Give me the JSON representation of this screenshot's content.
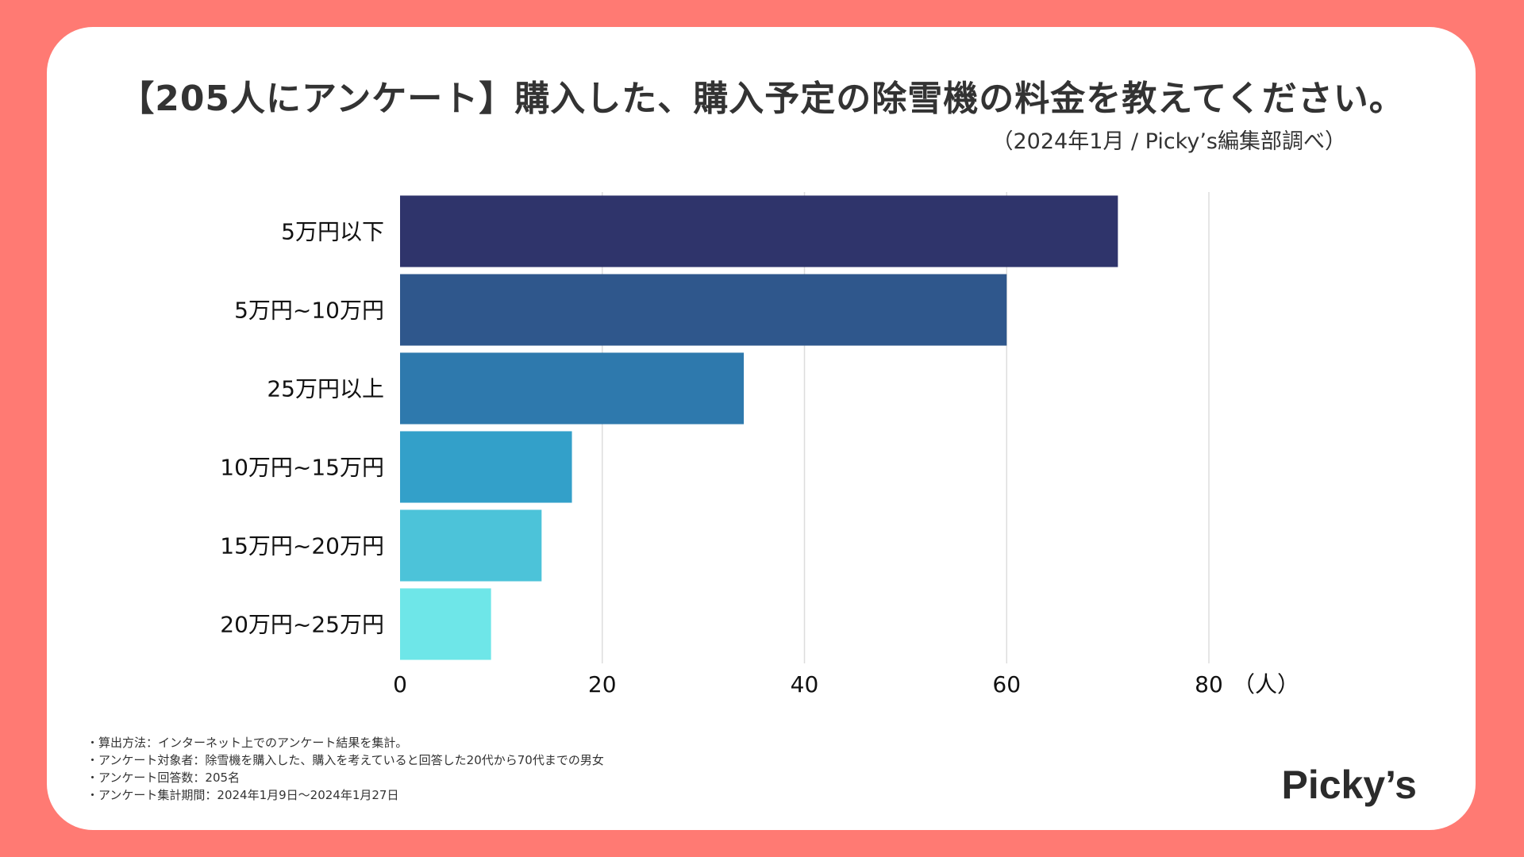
{
  "chart_data": {
    "type": "bar",
    "orientation": "horizontal",
    "title": "【205人にアンケート】購入した、購入予定の除雪機の料金を教えてください。",
    "subtitle": "（2024年1月 / Picky’s編集部調べ）",
    "categories": [
      "5万円以下",
      "5万円~10万円",
      "25万円以上",
      "10万円~15万円",
      "15万円~20万円",
      "20万円~25万円"
    ],
    "values": [
      71,
      60,
      34,
      17,
      14,
      9
    ],
    "colors": [
      "#2f346b",
      "#2f578c",
      "#2e79ad",
      "#33a0c9",
      "#4cc3d9",
      "#6ee6e8"
    ],
    "xlim": [
      0,
      80
    ],
    "xticks": [
      0,
      20,
      40,
      60,
      80
    ],
    "xtick_labels": [
      "0",
      "20",
      "40",
      "60",
      "80"
    ],
    "xunit": "（人）",
    "grid": true
  },
  "notes": [
    "・算出方法：インターネット上でのアンケート結果を集計。",
    "・アンケート対象者：除雪機を購入した、購入を考えていると回答した20代から70代までの男女",
    "・アンケート回答数：205名",
    "・アンケート集計期間：2024年1月9日〜2024年1月27日"
  ],
  "logo": {
    "text": "Picky’s"
  },
  "colors": {
    "background": "#ff7a73",
    "card": "#ffffff",
    "text": "#333333",
    "grid": "#dddddd"
  }
}
